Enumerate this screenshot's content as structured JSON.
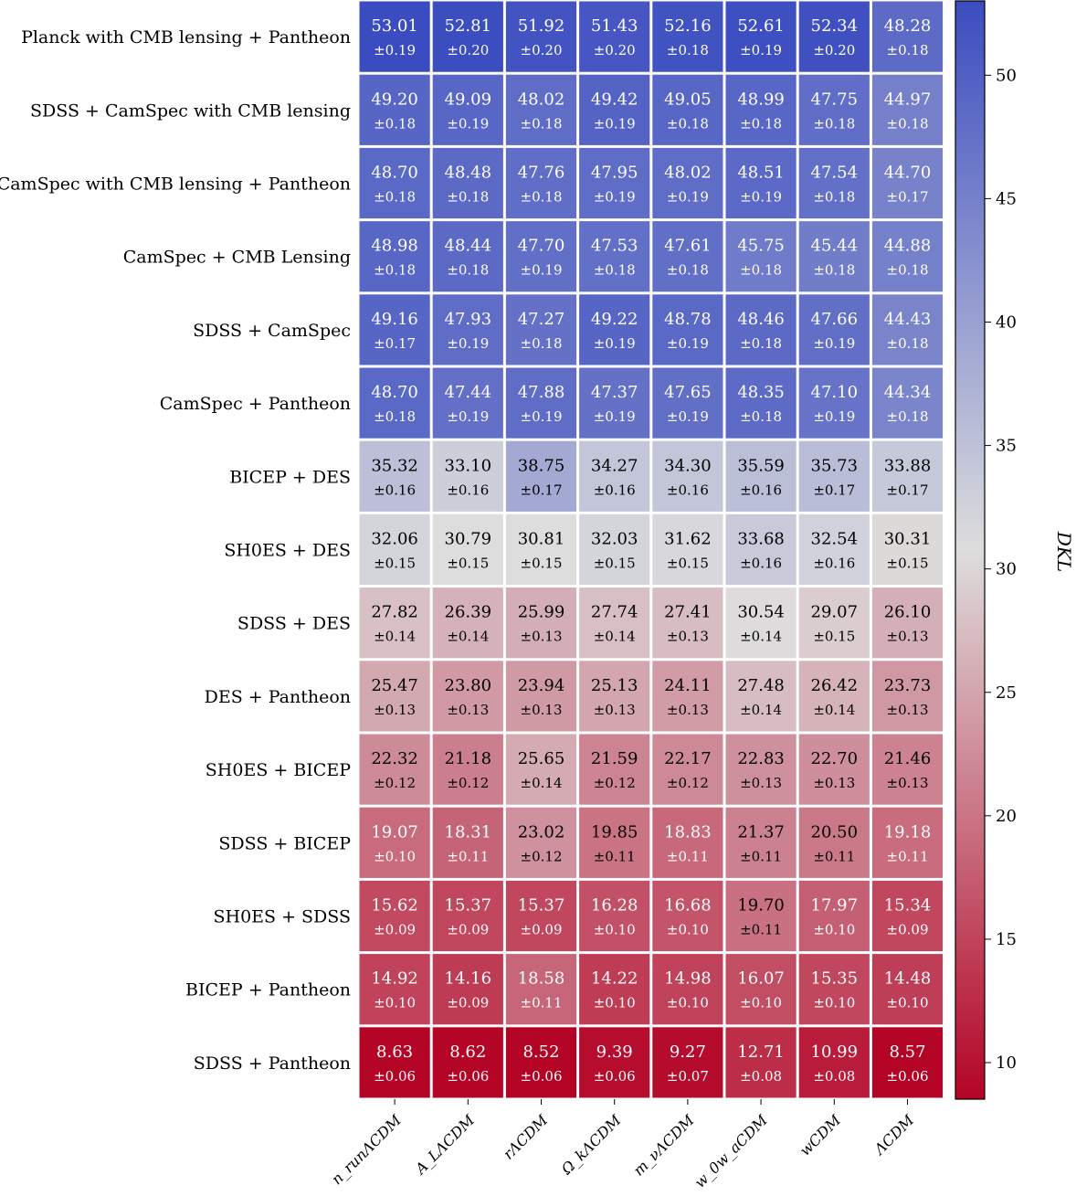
{
  "chart_data": {
    "type": "heatmap",
    "colorbar_label": "DKL",
    "colorbar_ticks": [
      10,
      15,
      20,
      25,
      30,
      35,
      40,
      45,
      50
    ],
    "color_range": [
      8.52,
      53.01
    ],
    "columns": [
      "n_runΛCDM",
      "A_LΛCDM",
      "rΛCDM",
      "Ω_kΛCDM",
      "m_νΛCDM",
      "w_0w_aCDM",
      "wCDM",
      "ΛCDM"
    ],
    "rows": [
      "Planck with CMB lensing + Pantheon",
      "SDSS + CamSpec with CMB lensing",
      "CamSpec with CMB lensing + Pantheon",
      "CamSpec + CMB Lensing",
      "SDSS + CamSpec",
      "CamSpec + Pantheon",
      "BICEP + DES",
      "SH0ES + DES",
      "SDSS + DES",
      "DES + Pantheon",
      "SH0ES + BICEP",
      "SDSS + BICEP",
      "SH0ES + SDSS",
      "BICEP + Pantheon",
      "SDSS + Pantheon"
    ],
    "values": [
      [
        53.01,
        52.81,
        51.92,
        51.43,
        52.16,
        52.61,
        52.34,
        48.28
      ],
      [
        49.2,
        49.09,
        48.02,
        49.42,
        49.05,
        48.99,
        47.75,
        44.97
      ],
      [
        48.7,
        48.48,
        47.76,
        47.95,
        48.02,
        48.51,
        47.54,
        44.7
      ],
      [
        48.98,
        48.44,
        47.7,
        47.53,
        47.61,
        45.75,
        45.44,
        44.88
      ],
      [
        49.16,
        47.93,
        47.27,
        49.22,
        48.78,
        48.46,
        47.66,
        44.43
      ],
      [
        48.7,
        47.44,
        47.88,
        47.37,
        47.65,
        48.35,
        47.1,
        44.34
      ],
      [
        35.32,
        33.1,
        38.75,
        34.27,
        34.3,
        35.59,
        35.73,
        33.88
      ],
      [
        32.06,
        30.79,
        30.81,
        32.03,
        31.62,
        33.68,
        32.54,
        30.31
      ],
      [
        27.82,
        26.39,
        25.99,
        27.74,
        27.41,
        30.54,
        29.07,
        26.1
      ],
      [
        25.47,
        23.8,
        23.94,
        25.13,
        24.11,
        27.48,
        26.42,
        23.73
      ],
      [
        22.32,
        21.18,
        25.65,
        21.59,
        22.17,
        22.83,
        22.7,
        21.46
      ],
      [
        19.07,
        18.31,
        23.02,
        19.85,
        18.83,
        21.37,
        20.5,
        19.18
      ],
      [
        15.62,
        15.37,
        15.37,
        16.28,
        16.68,
        19.7,
        17.97,
        15.34
      ],
      [
        14.92,
        14.16,
        18.58,
        14.22,
        14.98,
        16.07,
        15.35,
        14.48
      ],
      [
        8.63,
        8.62,
        8.52,
        9.39,
        9.27,
        12.71,
        10.99,
        8.57
      ]
    ],
    "errors": [
      [
        "±0.19",
        "±0.20",
        "±0.20",
        "±0.20",
        "±0.18",
        "±0.19",
        "±0.20",
        "±0.18"
      ],
      [
        "±0.18",
        "±0.19",
        "±0.18",
        "±0.19",
        "±0.18",
        "±0.18",
        "±0.18",
        "±0.18"
      ],
      [
        "±0.18",
        "±0.18",
        "±0.18",
        "±0.19",
        "±0.19",
        "±0.19",
        "±0.18",
        "±0.17"
      ],
      [
        "±0.18",
        "±0.18",
        "±0.19",
        "±0.18",
        "±0.18",
        "±0.18",
        "±0.18",
        "±0.18"
      ],
      [
        "±0.17",
        "±0.19",
        "±0.18",
        "±0.19",
        "±0.19",
        "±0.18",
        "±0.19",
        "±0.18"
      ],
      [
        "±0.18",
        "±0.19",
        "±0.19",
        "±0.19",
        "±0.19",
        "±0.18",
        "±0.19",
        "±0.18"
      ],
      [
        "±0.16",
        "±0.16",
        "±0.17",
        "±0.16",
        "±0.16",
        "±0.16",
        "±0.17",
        "±0.17"
      ],
      [
        "±0.15",
        "±0.15",
        "±0.15",
        "±0.15",
        "±0.15",
        "±0.16",
        "±0.16",
        "±0.15"
      ],
      [
        "±0.14",
        "±0.14",
        "±0.13",
        "±0.14",
        "±0.13",
        "±0.14",
        "±0.15",
        "±0.13"
      ],
      [
        "±0.13",
        "±0.13",
        "±0.13",
        "±0.13",
        "±0.13",
        "±0.14",
        "±0.14",
        "±0.13"
      ],
      [
        "±0.12",
        "±0.12",
        "±0.14",
        "±0.12",
        "±0.12",
        "±0.13",
        "±0.13",
        "±0.13"
      ],
      [
        "±0.10",
        "±0.11",
        "±0.12",
        "±0.11",
        "±0.11",
        "±0.11",
        "±0.11",
        "±0.11"
      ],
      [
        "±0.09",
        "±0.09",
        "±0.09",
        "±0.10",
        "±0.10",
        "±0.11",
        "±0.10",
        "±0.09"
      ],
      [
        "±0.10",
        "±0.09",
        "±0.11",
        "±0.10",
        "±0.10",
        "±0.10",
        "±0.10",
        "±0.10"
      ],
      [
        "±0.06",
        "±0.06",
        "±0.06",
        "±0.06",
        "±0.07",
        "±0.08",
        "±0.08",
        "±0.06"
      ]
    ],
    "colormap": "coolwarm",
    "colormap_low": "#b40426",
    "colormap_mid": "#dddddd",
    "colormap_high": "#3b4cc0"
  }
}
